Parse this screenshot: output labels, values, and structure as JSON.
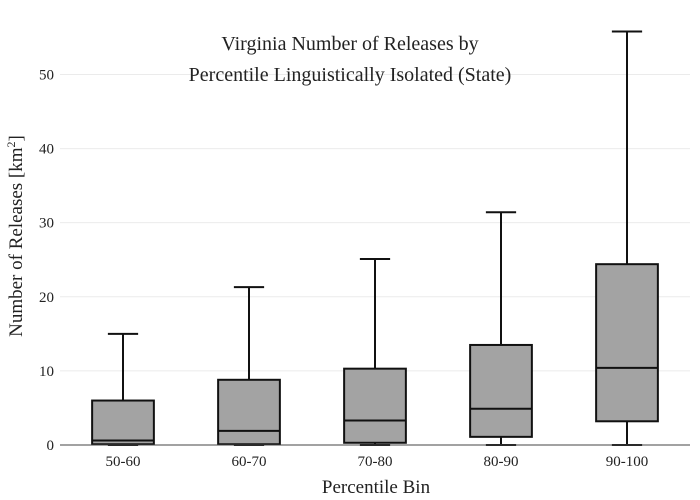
{
  "chart_data": {
    "type": "box",
    "title_lines": [
      "Virginia Number of Releases by",
      "Percentile Linguistically Isolated (State)"
    ],
    "xlabel": "Percentile Bin",
    "ylabel_main": "Number of Releases  [km",
    "ylabel_sup": "2",
    "ylabel_end": "]",
    "ylim": [
      0,
      56
    ],
    "yticks": [
      0,
      10,
      20,
      30,
      40,
      50
    ],
    "grid": true,
    "box_color": "#a3a3a3",
    "categories": [
      "50-60",
      "60-70",
      "70-80",
      "80-90",
      "90-100"
    ],
    "boxes": [
      {
        "min": 0,
        "q1": 0.1,
        "median": 0.6,
        "q3": 6.0,
        "max": 15.0
      },
      {
        "min": 0,
        "q1": 0.1,
        "median": 1.9,
        "q3": 8.8,
        "max": 21.3
      },
      {
        "min": 0,
        "q1": 0.3,
        "median": 3.3,
        "q3": 10.3,
        "max": 25.1
      },
      {
        "min": 0,
        "q1": 1.1,
        "median": 4.9,
        "q3": 13.5,
        "max": 31.4
      },
      {
        "min": 0,
        "q1": 3.2,
        "median": 10.4,
        "q3": 24.4,
        "max": 55.8
      }
    ]
  }
}
